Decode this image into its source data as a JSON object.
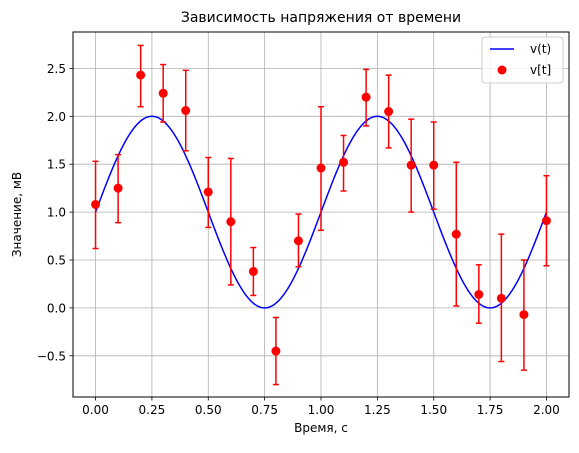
{
  "chart_data": {
    "type": "scatter",
    "title": "Зависимость напряжения от времени",
    "xlabel": "Время, с",
    "ylabel": "Значение, мВ",
    "xlim": [
      -0.1,
      2.1
    ],
    "ylim": [
      -0.93,
      2.88
    ],
    "xticks": [
      0.0,
      0.25,
      0.5,
      0.75,
      1.0,
      1.25,
      1.5,
      1.75,
      2.0
    ],
    "xtick_labels": [
      "0.00",
      "0.25",
      "0.50",
      "0.75",
      "1.00",
      "1.25",
      "1.50",
      "1.75",
      "2.00"
    ],
    "yticks": [
      -0.5,
      0.0,
      0.5,
      1.0,
      1.5,
      2.0,
      2.5
    ],
    "ytick_labels": [
      "−0.5",
      "0.0",
      "0.5",
      "1.0",
      "1.5",
      "2.0",
      "2.5"
    ],
    "grid": true,
    "legend_position": "top-right",
    "series": [
      {
        "name": "v(t)",
        "kind": "line",
        "color": "#0000ff",
        "function": "1 + sin(2*pi*t)",
        "x_range": [
          0,
          2
        ]
      },
      {
        "name": "v[t]",
        "kind": "errorbar",
        "color": "#ff0000",
        "x": [
          0.0,
          0.1,
          0.2,
          0.3,
          0.4,
          0.5,
          0.6,
          0.7,
          0.8,
          0.9,
          1.0,
          1.1,
          1.2,
          1.3,
          1.4,
          1.5,
          1.6,
          1.7,
          1.8,
          1.9,
          2.0
        ],
        "y": [
          1.08,
          1.25,
          2.43,
          2.24,
          2.06,
          1.21,
          0.9,
          0.38,
          -0.45,
          0.7,
          1.46,
          1.52,
          2.2,
          2.05,
          1.49,
          1.49,
          0.77,
          0.14,
          0.1,
          -0.07,
          0.91
        ],
        "yerr_low": [
          0.46,
          0.36,
          0.33,
          0.3,
          0.42,
          0.37,
          0.66,
          0.25,
          0.35,
          0.27,
          0.65,
          0.3,
          0.3,
          0.38,
          0.49,
          0.46,
          0.75,
          0.3,
          0.66,
          0.58,
          0.47
        ],
        "yerr_high": [
          0.45,
          0.35,
          0.31,
          0.3,
          0.42,
          0.36,
          0.66,
          0.25,
          0.35,
          0.28,
          0.64,
          0.28,
          0.29,
          0.38,
          0.48,
          0.45,
          0.75,
          0.31,
          0.67,
          0.57,
          0.47
        ]
      }
    ]
  }
}
